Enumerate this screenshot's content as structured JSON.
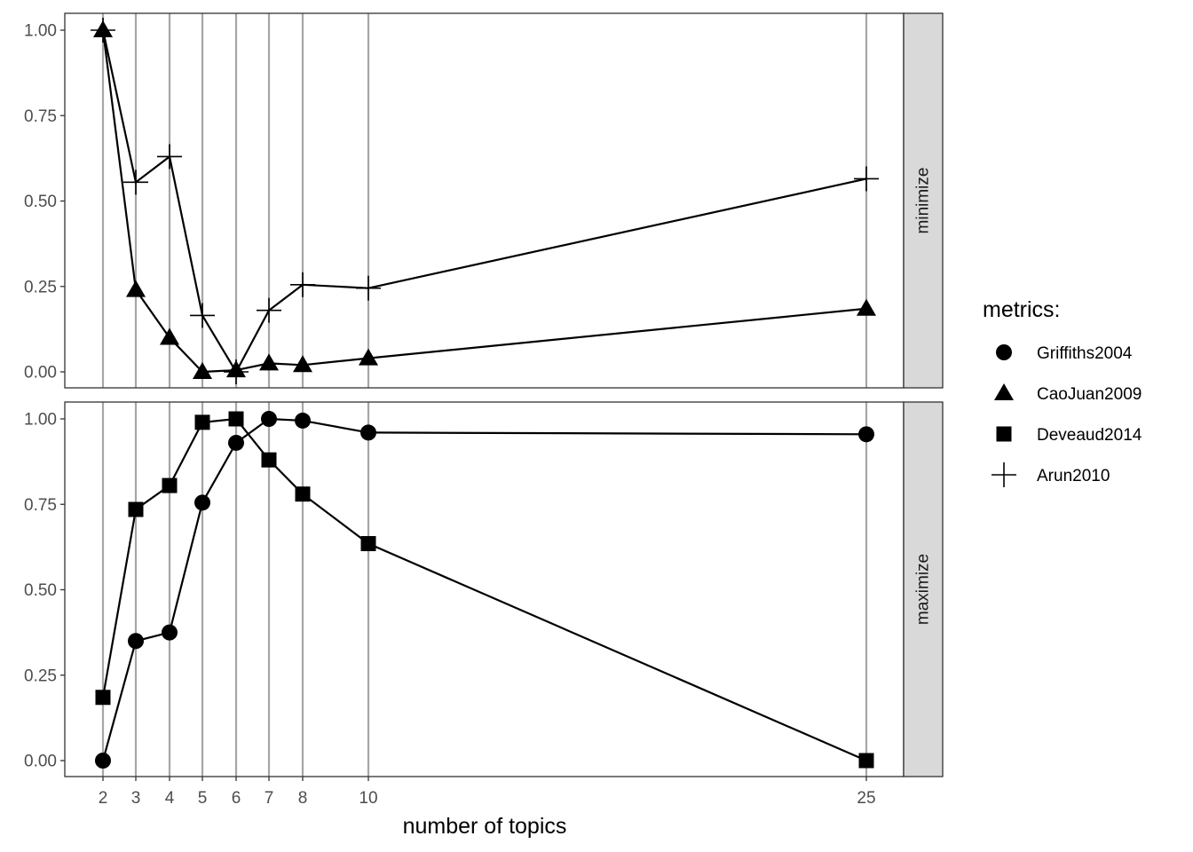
{
  "chart_data": {
    "type": "line",
    "xlabel": "number of topics",
    "x_ticks": [
      2,
      3,
      4,
      5,
      6,
      7,
      8,
      10,
      25
    ],
    "y_ticks": [
      "0.00",
      "0.25",
      "0.50",
      "0.75",
      "1.00"
    ],
    "ylim": [
      0,
      1
    ],
    "grid": "vertical lines at each x tick",
    "legend": {
      "title": "metrics:",
      "position": "right",
      "entries": [
        {
          "name": "Griffiths2004",
          "shape": "circle"
        },
        {
          "name": "CaoJuan2009",
          "shape": "triangle"
        },
        {
          "name": "Deveaud2014",
          "shape": "square"
        },
        {
          "name": "Arun2010",
          "shape": "plus"
        }
      ]
    },
    "panels": [
      {
        "strip": "minimize",
        "series": [
          {
            "name": "CaoJuan2009",
            "shape": "triangle",
            "points": [
              [
                2,
                1.0
              ],
              [
                3,
                0.24
              ],
              [
                4,
                0.1
              ],
              [
                5,
                0.0
              ],
              [
                6,
                0.005
              ],
              [
                7,
                0.025
              ],
              [
                8,
                0.02
              ],
              [
                10,
                0.04
              ],
              [
                25,
                0.185
              ]
            ]
          },
          {
            "name": "Arun2010",
            "shape": "plus",
            "points": [
              [
                2,
                1.0
              ],
              [
                3,
                0.555
              ],
              [
                4,
                0.63
              ],
              [
                5,
                0.165
              ],
              [
                6,
                0.0
              ],
              [
                7,
                0.18
              ],
              [
                8,
                0.255
              ],
              [
                10,
                0.245
              ],
              [
                25,
                0.565
              ]
            ]
          }
        ]
      },
      {
        "strip": "maximize",
        "series": [
          {
            "name": "Griffiths2004",
            "shape": "circle",
            "points": [
              [
                2,
                0.0
              ],
              [
                3,
                0.35
              ],
              [
                4,
                0.375
              ],
              [
                5,
                0.755
              ],
              [
                6,
                0.93
              ],
              [
                7,
                1.0
              ],
              [
                8,
                0.995
              ],
              [
                10,
                0.96
              ],
              [
                25,
                0.955
              ]
            ]
          },
          {
            "name": "Deveaud2014",
            "shape": "square",
            "points": [
              [
                2,
                0.185
              ],
              [
                3,
                0.735
              ],
              [
                4,
                0.805
              ],
              [
                5,
                0.99
              ],
              [
                6,
                1.0
              ],
              [
                7,
                0.88
              ],
              [
                8,
                0.78
              ],
              [
                10,
                0.635
              ],
              [
                25,
                0.0
              ]
            ]
          }
        ]
      }
    ]
  }
}
